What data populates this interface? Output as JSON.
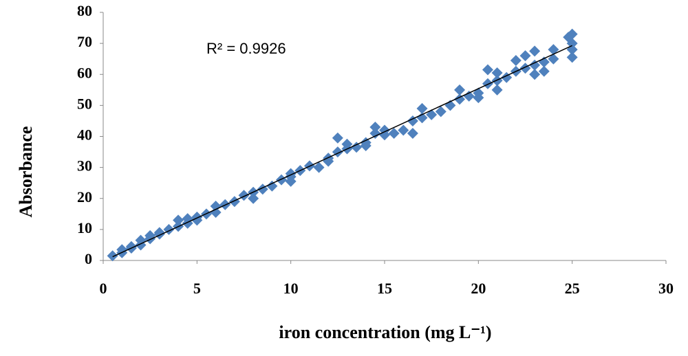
{
  "chart_data": {
    "type": "scatter",
    "xlabel": "iron concentration (mg L⁻¹)",
    "ylabel": "Absorbance",
    "annotation": "R² = 0.9926",
    "xlim": [
      0,
      30
    ],
    "xticks": [
      0,
      5,
      10,
      15,
      20,
      25,
      30
    ],
    "ylim": [
      0,
      80
    ],
    "yticks": [
      0,
      10,
      20,
      30,
      40,
      50,
      60,
      70,
      80
    ],
    "grid": false,
    "color": "#4f81bd",
    "x": [
      0.5,
      1,
      1,
      1.5,
      1.5,
      2,
      2,
      2.5,
      2.5,
      3,
      3,
      3.5,
      4,
      4,
      4.5,
      4.5,
      5,
      5,
      5.5,
      6,
      6,
      6.5,
      7,
      7.5,
      8,
      8,
      8.5,
      9,
      9.5,
      10,
      10,
      10,
      10.5,
      11,
      11.5,
      12,
      12,
      12.5,
      12.5,
      13,
      13,
      13.5,
      14,
      14,
      14.5,
      14.5,
      15,
      15,
      15.5,
      16,
      16.5,
      16.5,
      17,
      17,
      17.5,
      18,
      18.5,
      19,
      19,
      19.5,
      20,
      20,
      20.5,
      20.5,
      21,
      21,
      21,
      21.5,
      22,
      22,
      22.5,
      22.5,
      23,
      23,
      23,
      23.5,
      23.5,
      24,
      24,
      25,
      25,
      25,
      24.8,
      25
    ],
    "values": [
      1.5,
      2.5,
      3.5,
      4,
      4.5,
      5,
      6.5,
      7,
      8,
      8.5,
      9,
      10,
      11,
      13,
      13.5,
      12,
      13,
      14,
      15,
      15.5,
      17.5,
      18,
      19,
      21,
      20,
      22,
      23,
      24,
      26,
      25.5,
      27,
      28,
      29,
      30.5,
      30,
      32,
      33,
      35,
      39.5,
      37.5,
      36,
      36.5,
      37,
      38,
      41,
      43,
      42,
      40.5,
      41,
      42,
      41,
      45,
      46,
      49,
      47,
      48,
      50,
      52,
      55,
      53,
      52.5,
      54,
      57,
      61.5,
      55,
      58,
      60.5,
      59,
      61,
      64.5,
      62,
      66,
      60,
      63,
      67.5,
      61,
      64,
      68,
      65,
      65.5,
      68,
      70,
      72,
      73
    ],
    "trendline": {
      "x": [
        0.5,
        25
      ],
      "y": [
        1.2,
        69.3
      ],
      "color": "#000000"
    }
  }
}
